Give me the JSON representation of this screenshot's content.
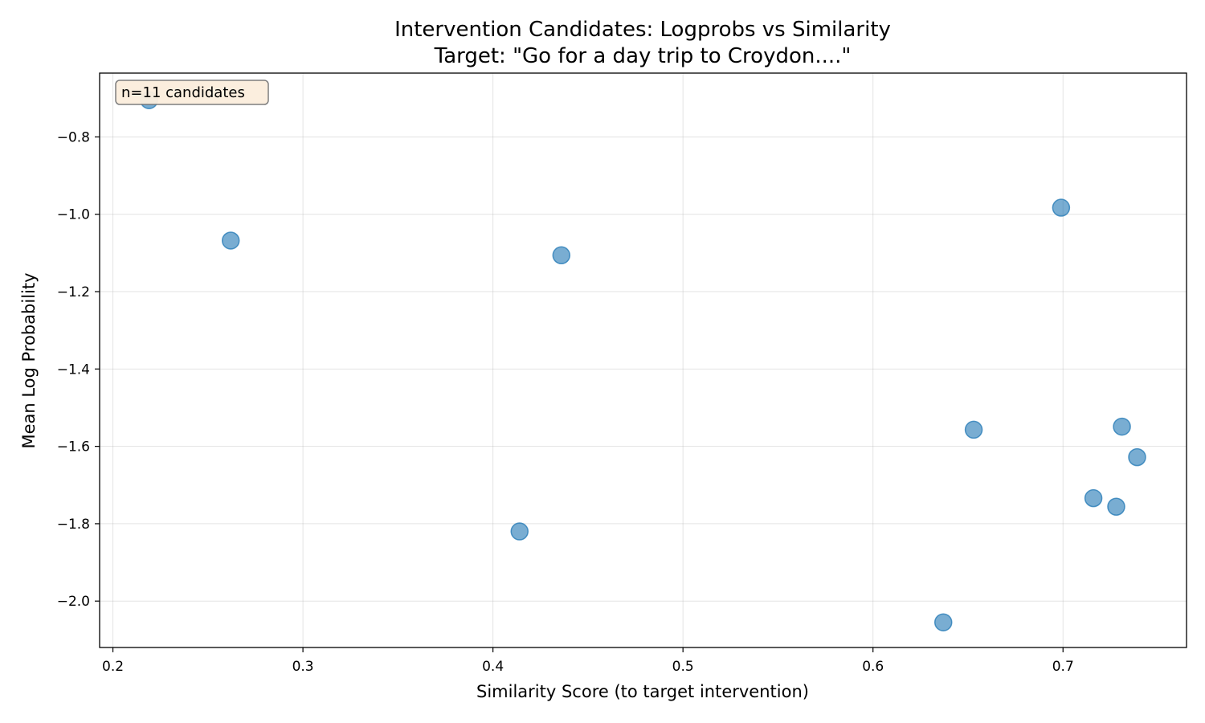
{
  "chart_data": {
    "type": "scatter",
    "title": "Intervention Candidates: Logprobs vs Similarity",
    "subtitle": "Target: \"Go for a day trip to Croydon....\"",
    "xlabel": "Similarity Score (to target intervention)",
    "ylabel": "Mean Log Probability",
    "xlim": [
      0.193,
      0.765
    ],
    "ylim": [
      -2.12,
      -0.635
    ],
    "xticks": [
      0.2,
      0.3,
      0.4,
      0.5,
      0.6,
      0.7
    ],
    "xtick_labels": [
      "0.2",
      "0.3",
      "0.4",
      "0.5",
      "0.6",
      "0.7"
    ],
    "yticks": [
      -0.8,
      -1.0,
      -1.2,
      -1.4,
      -1.6,
      -1.8,
      -2.0
    ],
    "ytick_labels": [
      "−0.8",
      "−1.0",
      "−1.2",
      "−1.4",
      "−1.6",
      "−1.8",
      "−2.0"
    ],
    "grid": true,
    "point_color": "#1f77b4",
    "annotation_box": {
      "text": "n=11 candidates",
      "placement": "top-left",
      "fill": "#fbeedd",
      "border": "#777777"
    },
    "points": [
      {
        "x": 0.219,
        "y": -0.705
      },
      {
        "x": 0.262,
        "y": -1.068
      },
      {
        "x": 0.414,
        "y": -1.82
      },
      {
        "x": 0.436,
        "y": -1.106
      },
      {
        "x": 0.637,
        "y": -2.055
      },
      {
        "x": 0.653,
        "y": -1.557
      },
      {
        "x": 0.699,
        "y": -0.983
      },
      {
        "x": 0.716,
        "y": -1.734
      },
      {
        "x": 0.728,
        "y": -1.756
      },
      {
        "x": 0.731,
        "y": -1.549
      },
      {
        "x": 0.739,
        "y": -1.628
      }
    ]
  }
}
